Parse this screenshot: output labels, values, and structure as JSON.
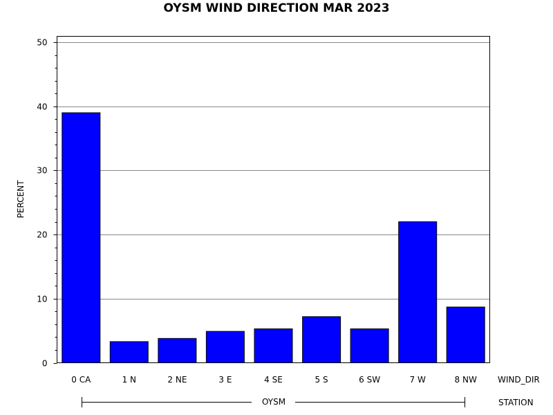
{
  "chart_data": {
    "type": "bar",
    "title": "OYSM WIND DIRECTION MAR 2023",
    "ylabel": "PERCENT",
    "xlabel": "WIND_DIR",
    "group_label": "STATION",
    "group_name": "OYSM",
    "categories": [
      "0 CA",
      "1 N",
      "2 NE",
      "3 E",
      "4 SE",
      "5 S",
      "6 SW",
      "7 W",
      "8 NW"
    ],
    "values": [
      39,
      3.3,
      3.8,
      4.9,
      5.3,
      7.2,
      5.3,
      22,
      8.7
    ],
    "ylim": [
      0,
      50
    ],
    "yticks": [
      "0",
      "10",
      "20",
      "30",
      "40",
      "50"
    ],
    "grid": true,
    "bar_color": "#0000ff"
  }
}
